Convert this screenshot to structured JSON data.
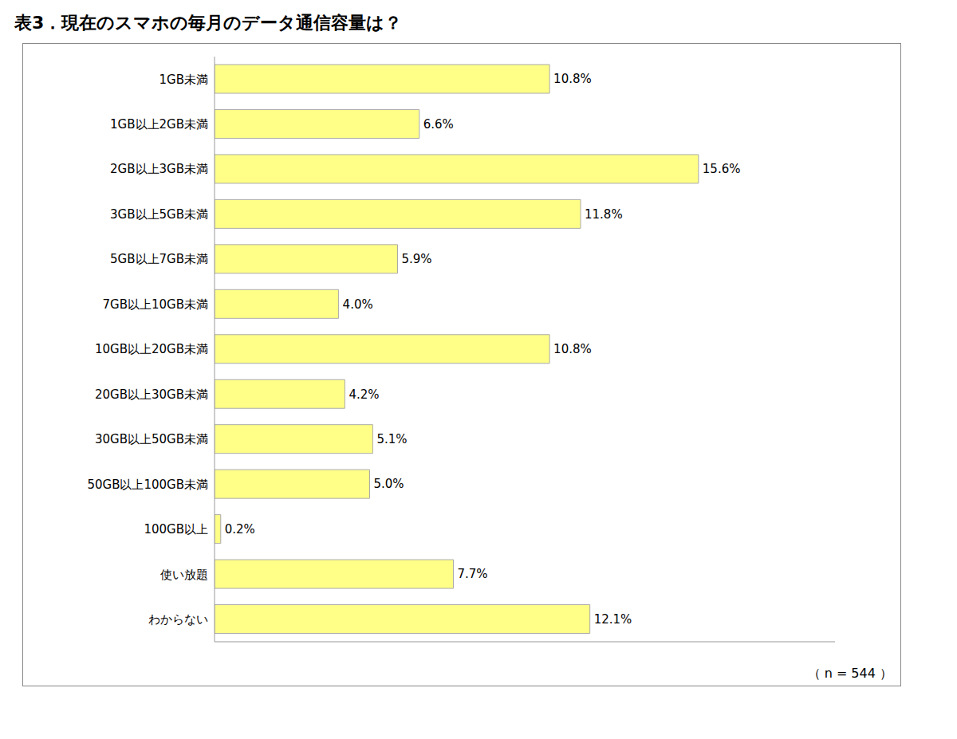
{
  "chart_data": {
    "type": "bar",
    "orientation": "horizontal",
    "title": "表3．現在のスマホの毎月のデータ通信容量は？",
    "categories": [
      "1GB未満",
      "1GB以上2GB未満",
      "2GB以上3GB未満",
      "3GB以上5GB未満",
      "5GB以上7GB未満",
      "7GB以上10GB未満",
      "10GB以上20GB未満",
      "20GB以上30GB未満",
      "30GB以上50GB未満",
      "50GB以上100GB未満",
      "100GB以上",
      "使い放題",
      "わからない"
    ],
    "values": [
      10.8,
      6.6,
      15.6,
      11.8,
      5.9,
      4.0,
      10.8,
      4.2,
      5.1,
      5.0,
      0.2,
      7.7,
      12.1
    ],
    "value_labels": [
      "10.8%",
      "6.6%",
      "15.6%",
      "11.8%",
      "5.9%",
      "4.0%",
      "10.8%",
      "4.2%",
      "5.1%",
      "5.0%",
      "0.2%",
      "7.7%",
      "12.1%"
    ],
    "data_labels": true,
    "color": "#FFFF88",
    "xlim": [
      0,
      20
    ],
    "xticks": [],
    "tick_labels": "y",
    "grid": false,
    "annotation": "（ n = 544 ）"
  }
}
